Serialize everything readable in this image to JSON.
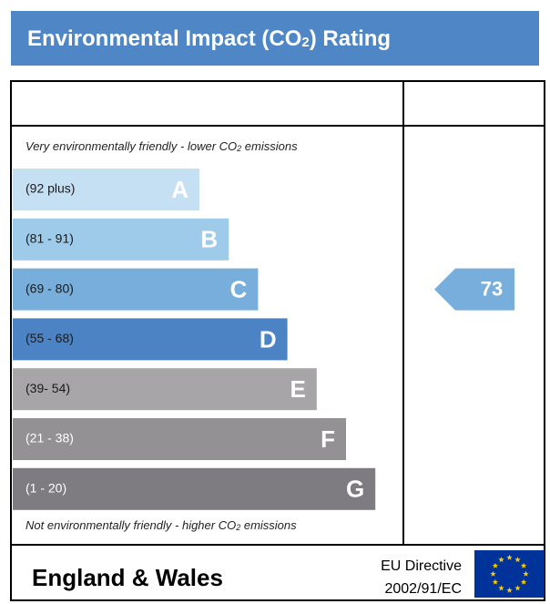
{
  "title": {
    "pre": "Environmental Impact (CO",
    "sub": "2",
    "post": ") Rating"
  },
  "top_note": {
    "pre": "Very environmentally friendly - lower CO",
    "sub": "2",
    "post": "  emissions"
  },
  "bottom_note": {
    "pre": "Not environmentally friendly - higher CO",
    "sub": "2",
    "post": " emissions"
  },
  "bands": [
    {
      "range": "(92 plus)",
      "letter": "A",
      "color": "#c5dff3",
      "text_color": "#1a1a1a"
    },
    {
      "range": "(81 - 91)",
      "letter": "B",
      "color": "#9ecbea",
      "text_color": "#1a1a1a"
    },
    {
      "range": "(69 - 80)",
      "letter": "C",
      "color": "#77aedc",
      "text_color": "#1a1a1a"
    },
    {
      "range": "(55 - 68)",
      "letter": "D",
      "color": "#4c83c4",
      "text_color": "#1a1a1a"
    },
    {
      "range": "(39- 54)",
      "letter": "E",
      "color": "#a7a5a8",
      "text_color": "#1a1a1a"
    },
    {
      "range": "(21 - 38)",
      "letter": "F",
      "color": "#939194",
      "text_color": "#ffffff"
    },
    {
      "range": "(1 - 20)",
      "letter": "G",
      "color": "#7e7c80",
      "text_color": "#ffffff"
    }
  ],
  "current": {
    "value": 73,
    "band": 2
  },
  "footer": {
    "region": "England & Wales",
    "directive_line1": "EU Directive",
    "directive_line2": "2002/91/EC"
  }
}
